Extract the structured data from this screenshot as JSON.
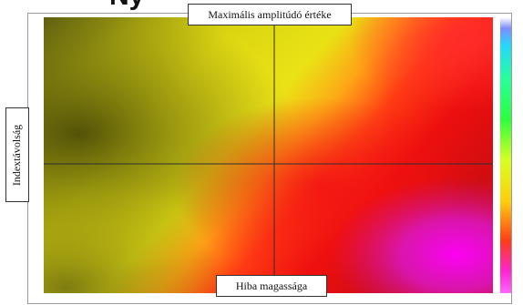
{
  "header_fragment": "Ny",
  "title": "Maximális amplitúdó értéke",
  "y_axis_label": "Indextávolság",
  "x_axis_label": "Hiba magassága",
  "colors": {
    "dark_olive": "#58580c",
    "yellow": "#e8e412",
    "red": "#ee0f0f",
    "magenta": "#dd18ee",
    "colorbar_top": "#ff33ff",
    "colorbar_bottom": "#ffff22"
  },
  "crosshair": {
    "visible": true
  }
}
